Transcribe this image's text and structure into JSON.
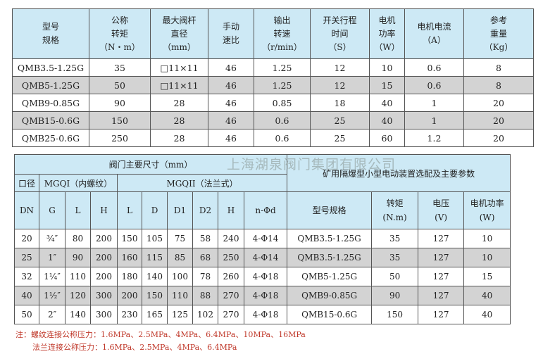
{
  "spec_table": {
    "headers": [
      "型号\n规格",
      "公称\n转矩\n（N・m）",
      "最大阀杆\n直径\n（mm）",
      "手动\n速比",
      "输出\n转速\n（r/min）",
      "开关行程\n时间\n（S）",
      "电机\n功率\n（W）",
      "电机电流\n（A）",
      "参考\n重量\n（Kg）"
    ],
    "rows": [
      [
        "QMB3.5-1.25G",
        "35",
        "□11×11",
        "46",
        "1.25",
        "12",
        "10",
        "0.6",
        "8"
      ],
      [
        "QMB5-1.25G",
        "50",
        "□11×11",
        "46",
        "1.25",
        "12",
        "15",
        "0.6",
        "8"
      ],
      [
        "QMB9-0.85G",
        "90",
        "28",
        "46",
        "0.85",
        "18",
        "40",
        "1",
        "20"
      ],
      [
        "QMB15-0.6G",
        "150",
        "28",
        "46",
        "0.6",
        "25",
        "40",
        "1",
        "20"
      ],
      [
        "QMB25-0.6G",
        "250",
        "28",
        "46",
        "0.6",
        "25",
        "60",
        "1.2",
        "20"
      ]
    ]
  },
  "dim_table": {
    "title": "阀门主要尺寸（mm）",
    "group_caliber": "口径",
    "group_mgqi": "MGQI（内螺纹）",
    "group_mgqii": "MGQII（法兰式）",
    "right_title": "矿用隔爆型小型电动装置选配及主要参数",
    "headers": [
      "DN",
      "G",
      "L",
      "H",
      "L",
      "D",
      "D1",
      "D2",
      "H",
      "n-Φd",
      "型号规格",
      "转矩\n(N.m)",
      "电压\n(V)",
      "电机功率\n(W)"
    ],
    "rows": [
      [
        "20",
        "¾″",
        "80",
        "200",
        "150",
        "105",
        "75",
        "58",
        "240",
        "4-Φ14",
        "QMB3.5-1.25G",
        "35",
        "127",
        "10"
      ],
      [
        "25",
        "1″",
        "90",
        "200",
        "160",
        "115",
        "85",
        "68",
        "250",
        "4-Φ14",
        "QMB3.5-1.25G",
        "35",
        "127",
        "10"
      ],
      [
        "32",
        "1¼″",
        "110",
        "200",
        "180",
        "140",
        "100",
        "78",
        "260",
        "4-Φ18",
        "QMB5-1.25G",
        "50",
        "127",
        "15"
      ],
      [
        "40",
        "1½″",
        "120",
        "300",
        "200",
        "150",
        "110",
        "88",
        "270",
        "4-Φ18",
        "QMB9-0.85G",
        "90",
        "127",
        "40"
      ],
      [
        "50",
        "2″",
        "140",
        "300",
        "230",
        "165",
        "125",
        "102",
        "270",
        "4-Φ18",
        "QMB15-0.6G",
        "150",
        "127",
        "40"
      ]
    ]
  },
  "watermark": "上海湖泉阀门集团有限公司",
  "notes": [
    "注：螺纹连接公称压力：1.6MPa、2.5MPa、4MPa、6.4MPa、10MPa、16MPa",
    "法兰连接公称压力：1.6MPa、2.5MPa、4MPa、6.4MPa"
  ],
  "colors": {
    "header": "#cde9f5",
    "alt_row": "#d3d3d3",
    "note": "#c0392b"
  }
}
